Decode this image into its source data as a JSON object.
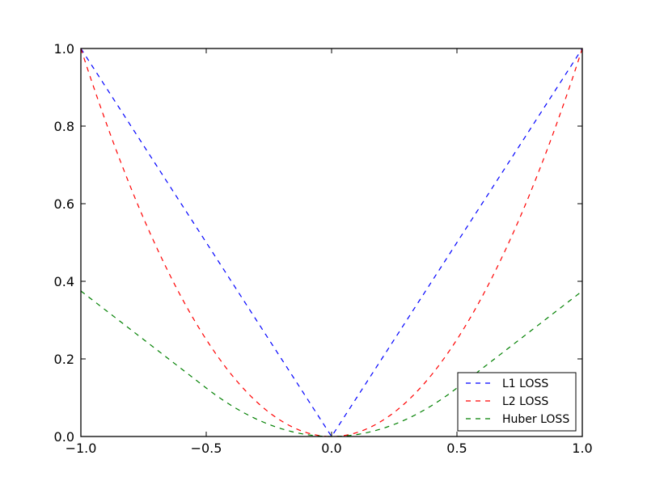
{
  "chart_data": {
    "type": "line",
    "title": "",
    "xlabel": "",
    "ylabel": "",
    "xlim": [
      -1.0,
      1.0
    ],
    "ylim": [
      0.0,
      1.0
    ],
    "grid": false,
    "legend_position": "lower right",
    "x_ticks": [
      "−1.0",
      "−0.5",
      "0.0",
      "0.5",
      "1.0"
    ],
    "y_ticks": [
      "0.0",
      "0.2",
      "0.4",
      "0.6",
      "0.8",
      "1.0"
    ],
    "x": [
      -1.0,
      -0.9,
      -0.8,
      -0.7,
      -0.6,
      -0.5,
      -0.4,
      -0.3,
      -0.2,
      -0.1,
      0.0,
      0.1,
      0.2,
      0.3,
      0.4,
      0.5,
      0.6,
      0.7,
      0.8,
      0.9,
      1.0
    ],
    "series": [
      {
        "name": "L1 LOSS",
        "color": "#0000ff",
        "style": "dashed",
        "values": [
          1.0,
          0.9,
          0.8,
          0.7,
          0.6,
          0.5,
          0.4,
          0.3,
          0.2,
          0.1,
          0.0,
          0.1,
          0.2,
          0.3,
          0.4,
          0.5,
          0.6,
          0.7,
          0.8,
          0.9,
          1.0
        ]
      },
      {
        "name": "L2 LOSS",
        "color": "#ff0000",
        "style": "dashed",
        "values": [
          1.0,
          0.81,
          0.64,
          0.49,
          0.36,
          0.25,
          0.16,
          0.09,
          0.04,
          0.01,
          0.0,
          0.01,
          0.04,
          0.09,
          0.16,
          0.25,
          0.36,
          0.49,
          0.64,
          0.81,
          1.0
        ]
      },
      {
        "name": "Huber LOSS",
        "color": "#008000",
        "style": "dashed",
        "values": [
          0.375,
          0.325,
          0.275,
          0.225,
          0.175,
          0.125,
          0.08,
          0.045,
          0.02,
          0.005,
          0.0,
          0.005,
          0.02,
          0.045,
          0.08,
          0.125,
          0.175,
          0.225,
          0.275,
          0.325,
          0.375
        ]
      }
    ]
  }
}
